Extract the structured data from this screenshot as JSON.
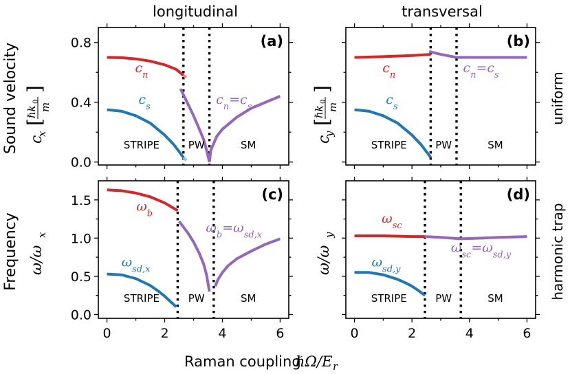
{
  "figure": {
    "column_titles": [
      "longitudinal",
      "transversal"
    ],
    "row_labels": [
      "uniform",
      "harmonic trap"
    ],
    "xlabel": "Raman coupling ℏΩ/E_r",
    "colors": {
      "red": "#d62728",
      "blue": "#1f77b4",
      "purple": "#9467bd"
    }
  },
  "chart_data": [
    {
      "panel": "(a)",
      "type": "line",
      "ylabel_outer": "Sound velocity",
      "ylabel_inner": "c_x [ℏk₀/m]",
      "xlim": [
        -0.3,
        6.3
      ],
      "ylim": [
        -0.02,
        0.9
      ],
      "xticks": [
        0,
        2,
        4,
        6
      ],
      "yticks": [
        0.0,
        0.4,
        0.8
      ],
      "ytick_labels": [
        "0.0",
        "0.4",
        "0.8"
      ],
      "vlines": [
        2.65,
        3.55
      ],
      "phase_labels": [
        {
          "text": "STRIPE",
          "x": 1.2
        },
        {
          "text": "PW",
          "x": 3.1
        },
        {
          "text": "SM",
          "x": 4.9
        }
      ],
      "series": [
        {
          "name": "c_n",
          "color": "red",
          "x": [
            0,
            0.5,
            1.0,
            1.5,
            2.0,
            2.4,
            2.65
          ],
          "y": [
            0.7,
            0.698,
            0.69,
            0.675,
            0.65,
            0.62,
            0.58
          ]
        },
        {
          "name": "c_n (end)",
          "color": "red-light",
          "x": [
            2.65,
            2.75
          ],
          "y": [
            0.58,
            0.565
          ]
        },
        {
          "name": "c_s",
          "color": "blue",
          "x": [
            0,
            0.5,
            1.0,
            1.5,
            2.0,
            2.3,
            2.5,
            2.65
          ],
          "y": [
            0.35,
            0.34,
            0.31,
            0.26,
            0.18,
            0.12,
            0.07,
            0.03
          ]
        },
        {
          "name": "c_s (end)",
          "color": "blue-light",
          "x": [
            2.65,
            2.75
          ],
          "y": [
            0.03,
            0.01
          ]
        },
        {
          "name": "c_n=c_s (PW)",
          "color": "purple",
          "x": [
            2.55,
            2.8,
            3.0,
            3.2,
            3.35,
            3.45,
            3.55
          ],
          "y": [
            0.49,
            0.39,
            0.31,
            0.22,
            0.15,
            0.08,
            0.0
          ]
        },
        {
          "name": "c_n=c_s (SM)",
          "color": "purple",
          "x": [
            3.55,
            3.6,
            3.8,
            4.0,
            4.5,
            5.0,
            5.5,
            6.0
          ],
          "y": [
            0.0,
            0.08,
            0.17,
            0.22,
            0.3,
            0.36,
            0.4,
            0.44
          ]
        }
      ],
      "curve_labels": [
        {
          "text": "c",
          "sub": "n",
          "color": "red",
          "x": 1.2,
          "y": 0.6
        },
        {
          "text": "c",
          "sub": "s",
          "color": "blue",
          "x": 1.3,
          "y": 0.39
        },
        {
          "text": "c",
          "sub": "n",
          "text2": "=c",
          "sub2": "s",
          "color": "purple",
          "x": 4.4,
          "y": 0.39
        }
      ]
    },
    {
      "panel": "(b)",
      "type": "line",
      "ylabel_inner": "c_y [ℏk₀/m]",
      "xlim": [
        -0.3,
        6.3
      ],
      "ylim": [
        -0.02,
        0.9
      ],
      "xticks": [
        0,
        2,
        4,
        6
      ],
      "yticks": [
        0.0,
        0.4,
        0.8
      ],
      "vlines": [
        2.65,
        3.55
      ],
      "phase_labels": [
        {
          "text": "STRIPE",
          "x": 1.2
        },
        {
          "text": "PW",
          "x": 3.1
        },
        {
          "text": "SM",
          "x": 4.9
        }
      ],
      "series": [
        {
          "name": "c_n",
          "color": "red",
          "x": [
            0,
            1.0,
            2.0,
            2.65
          ],
          "y": [
            0.7,
            0.705,
            0.713,
            0.72
          ]
        },
        {
          "name": "c_s",
          "color": "blue",
          "x": [
            0,
            0.5,
            1.0,
            1.5,
            2.0,
            2.3,
            2.5,
            2.65
          ],
          "y": [
            0.35,
            0.34,
            0.31,
            0.26,
            0.18,
            0.12,
            0.07,
            0.03
          ]
        },
        {
          "name": "c_n=c_s",
          "color": "purple",
          "x": [
            2.6,
            3.0,
            3.55,
            4.5,
            6.0
          ],
          "y": [
            0.74,
            0.72,
            0.7,
            0.7,
            0.7
          ]
        }
      ],
      "curve_labels": [
        {
          "text": "c",
          "sub": "n",
          "color": "red",
          "x": 1.2,
          "y": 0.6
        },
        {
          "text": "c",
          "sub": "s",
          "color": "blue",
          "x": 1.3,
          "y": 0.39
        },
        {
          "text": "c",
          "sub": "n",
          "text2": "=c",
          "sub2": "s",
          "color": "purple",
          "x": 4.4,
          "y": 0.6
        }
      ]
    },
    {
      "panel": "(c)",
      "type": "line",
      "ylabel_outer": "Frequency",
      "ylabel_inner": "ω/ω_x",
      "xlim": [
        -0.3,
        6.3
      ],
      "ylim": [
        -0.05,
        1.75
      ],
      "xticks": [
        0,
        2,
        4,
        6
      ],
      "yticks": [
        0.0,
        0.5,
        1.0,
        1.5
      ],
      "ytick_labels": [
        "0.0",
        "0.5",
        "1.0",
        "1.5"
      ],
      "xtick_labels": [
        "0",
        "2",
        "4",
        "6"
      ],
      "vlines": [
        2.45,
        3.7
      ],
      "phase_labels": [
        {
          "text": "STRIPE",
          "x": 1.2
        },
        {
          "text": "PW",
          "x": 3.1
        },
        {
          "text": "SM",
          "x": 4.9
        }
      ],
      "series": [
        {
          "name": "ω_b",
          "color": "red",
          "x": [
            0,
            0.5,
            1.0,
            1.5,
            2.0,
            2.45
          ],
          "y": [
            1.63,
            1.62,
            1.59,
            1.54,
            1.46,
            1.36
          ]
        },
        {
          "name": "ω_sd,x",
          "color": "blue",
          "x": [
            0,
            0.5,
            1.0,
            1.5,
            1.8,
            2.0,
            2.2,
            2.4
          ],
          "y": [
            0.53,
            0.52,
            0.47,
            0.38,
            0.3,
            0.24,
            0.17,
            0.1
          ]
        },
        {
          "name": "ω_b=ω_sd,x (PW)",
          "color": "purple",
          "x": [
            2.5,
            2.8,
            3.0,
            3.2,
            3.35,
            3.45,
            3.55
          ],
          "y": [
            1.22,
            1.07,
            0.95,
            0.8,
            0.66,
            0.52,
            0.3
          ]
        },
        {
          "name": "ω_b=ω_sd,x (SM)",
          "color": "purple",
          "x": [
            3.75,
            3.85,
            4.0,
            4.2,
            4.5,
            5.0,
            5.5,
            6.0
          ],
          "y": [
            0.37,
            0.46,
            0.55,
            0.64,
            0.73,
            0.83,
            0.92,
            0.99
          ]
        }
      ],
      "curve_labels": [
        {
          "text": "ω",
          "sub": "b",
          "color": "red",
          "x": 1.3,
          "y": 1.36
        },
        {
          "text": "ω",
          "sub": "sd,x",
          "color": "blue",
          "x": 1.0,
          "y": 0.63
        },
        {
          "text": "ω",
          "sub": "b",
          "text2": "=ω",
          "sub2": "sd,x",
          "color": "purple",
          "x": 4.4,
          "y": 1.08
        }
      ]
    },
    {
      "panel": "(d)",
      "type": "line",
      "ylabel_inner": "ω/ω_y",
      "xlim": [
        -0.3,
        6.3
      ],
      "ylim": [
        -0.05,
        1.75
      ],
      "xticks": [
        0,
        2,
        4,
        6
      ],
      "yticks": [
        0.0,
        0.5,
        1.0,
        1.5
      ],
      "xtick_labels": [
        "0",
        "2",
        "4",
        "6"
      ],
      "vlines": [
        2.45,
        3.7
      ],
      "phase_labels": [
        {
          "text": "STRIPE",
          "x": 1.2
        },
        {
          "text": "PW",
          "x": 3.1
        },
        {
          "text": "SM",
          "x": 4.9
        }
      ],
      "series": [
        {
          "name": "ω_sc",
          "color": "red",
          "x": [
            0,
            1.0,
            2.0,
            2.45
          ],
          "y": [
            1.03,
            1.03,
            1.02,
            1.02
          ]
        },
        {
          "name": "ω_sd,y",
          "color": "blue",
          "x": [
            0,
            0.5,
            1.0,
            1.5,
            1.8,
            2.0,
            2.2,
            2.45
          ],
          "y": [
            0.55,
            0.55,
            0.52,
            0.46,
            0.41,
            0.37,
            0.32,
            0.25
          ]
        },
        {
          "name": "ω_sc=ω_sd,y",
          "color": "purple",
          "x": [
            2.45,
            3.0,
            3.7,
            4.5,
            5.0,
            6.0
          ],
          "y": [
            1.02,
            1.01,
            0.99,
            1.0,
            1.01,
            1.02
          ]
        }
      ],
      "curve_labels": [
        {
          "text": "ω",
          "sub": "sc",
          "color": "red",
          "x": 1.3,
          "y": 1.2
        },
        {
          "text": "ω",
          "sub": "sd,y",
          "color": "blue",
          "x": 1.1,
          "y": 0.63
        },
        {
          "text": "ω",
          "sub": "sc",
          "text2": "=ω",
          "sub2": "sd,y",
          "color": "purple",
          "x": 4.4,
          "y": 0.82
        }
      ]
    }
  ]
}
